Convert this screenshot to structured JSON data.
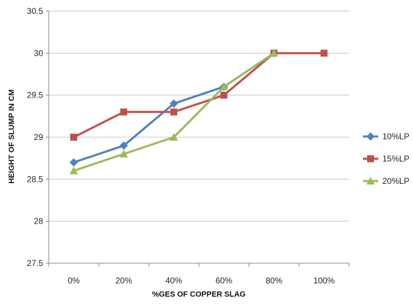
{
  "chart_data": {
    "type": "line",
    "title": "",
    "xlabel": "%GES OF COPPER SLAG",
    "ylabel": "HEIGHT OF SLUMP IN CM",
    "categories": [
      "0%",
      "20%",
      "40%",
      "60%",
      "80%",
      "100%"
    ],
    "ylim": [
      27.5,
      30.5
    ],
    "yticks": [
      27.5,
      28,
      28.5,
      29,
      29.5,
      30,
      30.5
    ],
    "grid": "horizontal",
    "legend_position": "right",
    "series": [
      {
        "name": "10%LP",
        "color": "#4f81bd",
        "marker": "diamond",
        "values": [
          28.7,
          28.9,
          29.4,
          29.6,
          30.0,
          null
        ]
      },
      {
        "name": "15%LP",
        "color": "#c0504d",
        "marker": "square",
        "values": [
          29.0,
          29.3,
          29.3,
          29.5,
          30.0,
          30.0
        ]
      },
      {
        "name": "20%LP",
        "color": "#9bbb59",
        "marker": "triangle",
        "values": [
          28.6,
          28.8,
          29.0,
          29.6,
          30.0,
          null
        ]
      }
    ]
  }
}
